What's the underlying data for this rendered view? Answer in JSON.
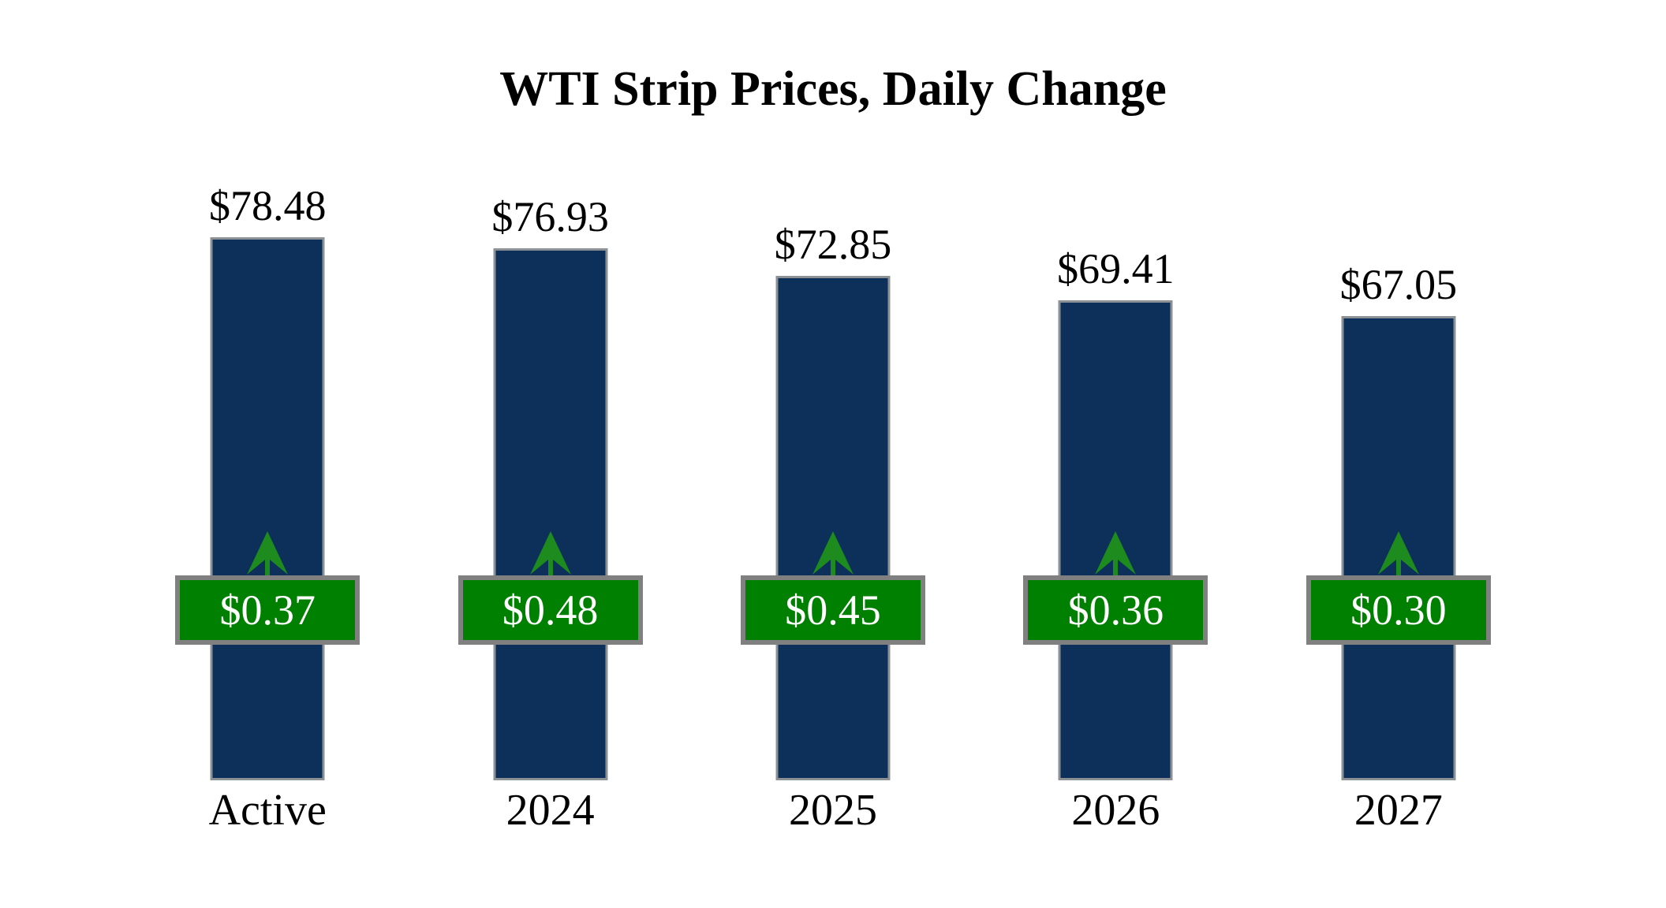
{
  "chart_data": {
    "type": "bar",
    "title": "WTI Strip Prices, Daily Change",
    "categories": [
      "Active",
      "2024",
      "2025",
      "2026",
      "2027"
    ],
    "series": [
      {
        "name": "WTI Strip Price",
        "values": [
          78.48,
          76.93,
          72.85,
          69.41,
          67.05
        ]
      },
      {
        "name": "Daily Change",
        "values": [
          0.37,
          0.48,
          0.45,
          0.36,
          0.3
        ]
      }
    ],
    "price_labels": [
      "$78.48",
      "$76.93",
      "$72.85",
      "$69.41",
      "$67.05"
    ],
    "change_labels": [
      "$0.37",
      "$0.48",
      "$0.45",
      "$0.36",
      "$0.30"
    ],
    "change_direction": "up",
    "xlabel": "",
    "ylabel": "",
    "ylim": [
      0,
      78.48
    ],
    "grid": false,
    "legend": false,
    "colors": {
      "background": "#FFFFFF",
      "bar_fill": "#0C3059",
      "bar_border": "#8C9196",
      "badge_fill": "#008000",
      "badge_border": "#808080",
      "badge_text": "#FFFFFF",
      "arrow": "#1E8B1E",
      "label_text": "#000000"
    }
  }
}
